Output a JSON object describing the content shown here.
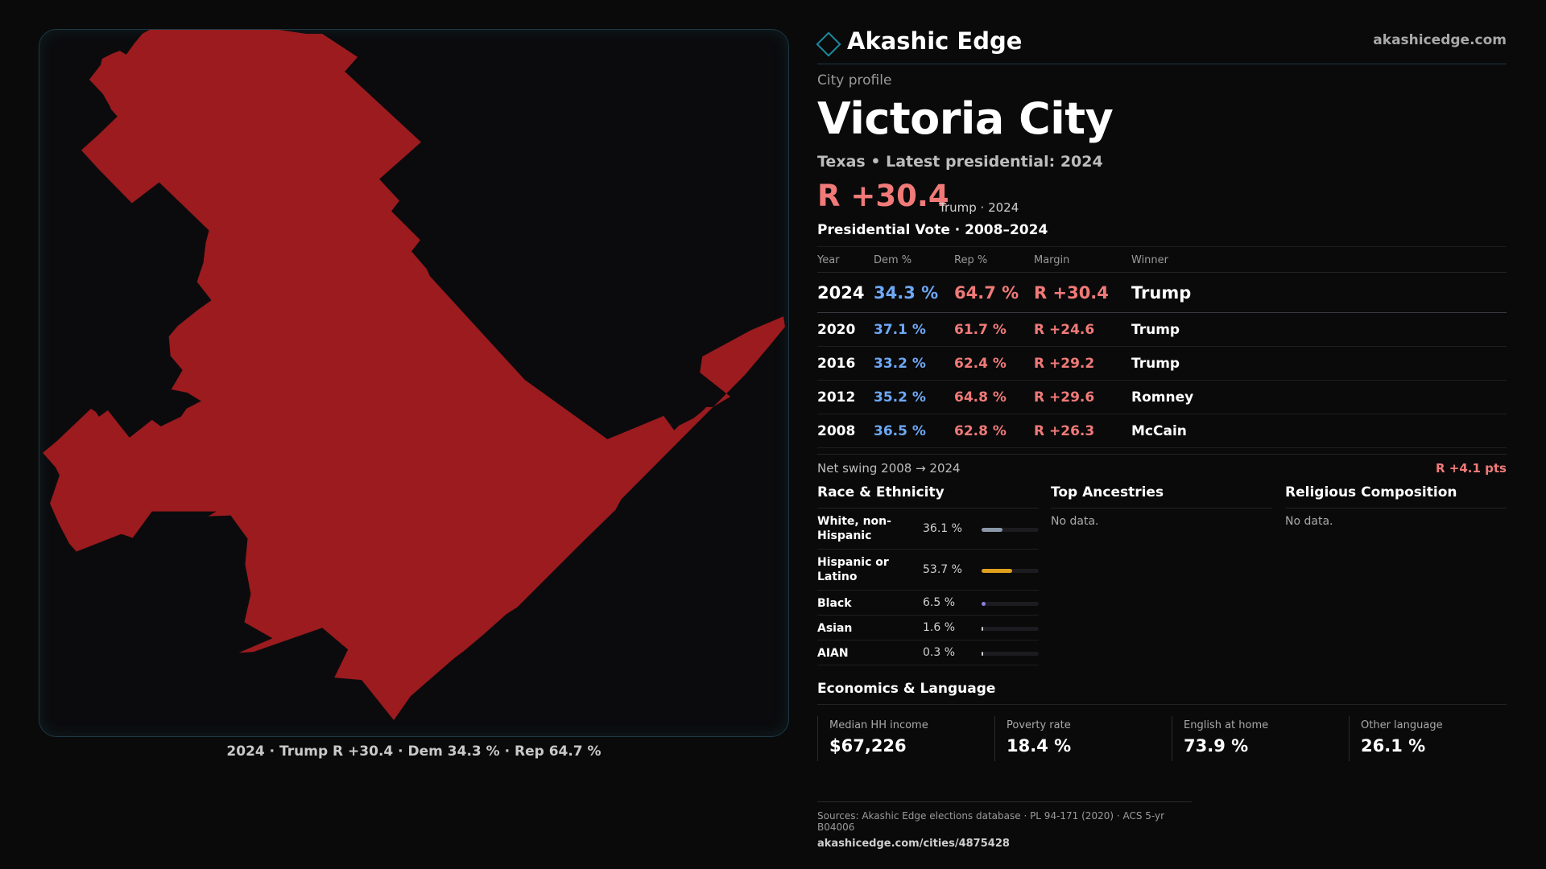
{
  "brand": {
    "name": "Akashic Edge",
    "url": "akashicedge.com",
    "accent": "#1a8ca0"
  },
  "map": {
    "caption": "2024 · Trump R +30.4 · Dem 34.3 % · Rep 64.7 %",
    "fill_color": "#9b1b1e"
  },
  "profile": {
    "eyebrow": "City profile",
    "title": "Victoria City",
    "subline": "Texas • Latest presidential: 2024",
    "margin": "R +30.4",
    "margin_note": "Trump · 2024"
  },
  "vote": {
    "title": "Presidential Vote · 2008–2024",
    "headers": {
      "year": "Year",
      "dem": "Dem %",
      "rep": "Rep %",
      "margin": "Margin",
      "winner": "Winner"
    },
    "rows": [
      {
        "year": "2024",
        "dem": "34.3 %",
        "rep": "64.7 %",
        "margin": "R +30.4",
        "winner": "Trump"
      },
      {
        "year": "2020",
        "dem": "37.1 %",
        "rep": "61.7 %",
        "margin": "R +24.6",
        "winner": "Trump"
      },
      {
        "year": "2016",
        "dem": "33.2 %",
        "rep": "62.4 %",
        "margin": "R +29.2",
        "winner": "Trump"
      },
      {
        "year": "2012",
        "dem": "35.2 %",
        "rep": "64.8 %",
        "margin": "R +29.6",
        "winner": "Romney"
      },
      {
        "year": "2008",
        "dem": "36.5 %",
        "rep": "62.8 %",
        "margin": "R +26.3",
        "winner": "McCain"
      }
    ],
    "dem_color": "#6ea8f5",
    "rep_color": "#f07a78"
  },
  "swing": {
    "label": "Net swing 2008 → 2024",
    "value": "R +4.1 pts"
  },
  "race": {
    "title": "Race & Ethnicity",
    "rows": [
      {
        "label": "White, non-Hispanic",
        "pct": "36.1 %",
        "share": 0.361,
        "color": "#8a97a8"
      },
      {
        "label": "Hispanic or Latino",
        "pct": "53.7 %",
        "share": 0.537,
        "color": "#e0a01e"
      },
      {
        "label": "Black",
        "pct": "6.5 %",
        "share": 0.065,
        "color": "#8d7fe0"
      },
      {
        "label": "Asian",
        "pct": "1.6 %",
        "share": 0.016,
        "color": "#cfcfcf"
      },
      {
        "label": "AIAN",
        "pct": "0.3 %",
        "share": 0.003,
        "color": "#cfcfcf"
      }
    ]
  },
  "ancestries": {
    "title": "Top Ancestries",
    "empty": "No data."
  },
  "religion": {
    "title": "Religious Composition",
    "empty": "No data."
  },
  "economics": {
    "title": "Economics & Language",
    "items": [
      {
        "label": "Median HH income",
        "value": "$67,226"
      },
      {
        "label": "Poverty rate",
        "value": "18.4 %"
      },
      {
        "label": "English at home",
        "value": "73.9 %"
      },
      {
        "label": "Other language",
        "value": "26.1 %"
      }
    ]
  },
  "footer": {
    "sources": "Sources: Akashic Edge elections database · PL 94-171 (2020) · ACS 5-yr B04006",
    "url": "akashicedge.com/cities/4875428"
  }
}
